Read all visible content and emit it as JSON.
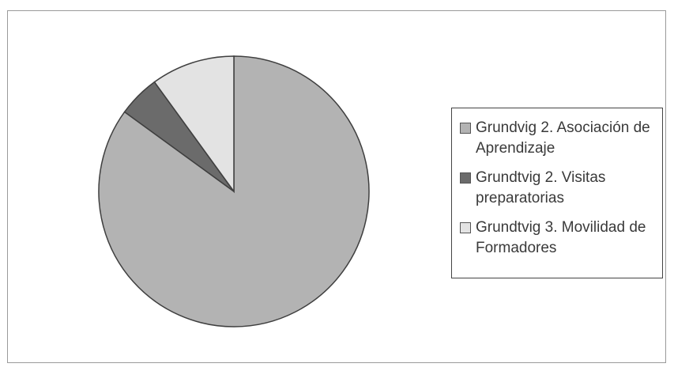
{
  "chart_data": {
    "type": "pie",
    "title": "",
    "categories": [
      "Grundvig 2. Asociación de Aprendizaje",
      "Grundtvig 2. Visitas preparatorias",
      "Grundtvig 3. Movilidad de Formadores"
    ],
    "values": [
      85,
      5,
      10
    ],
    "colors": [
      "#b3b3b3",
      "#6b6b6b",
      "#e3e3e3"
    ],
    "legend_position": "right"
  }
}
